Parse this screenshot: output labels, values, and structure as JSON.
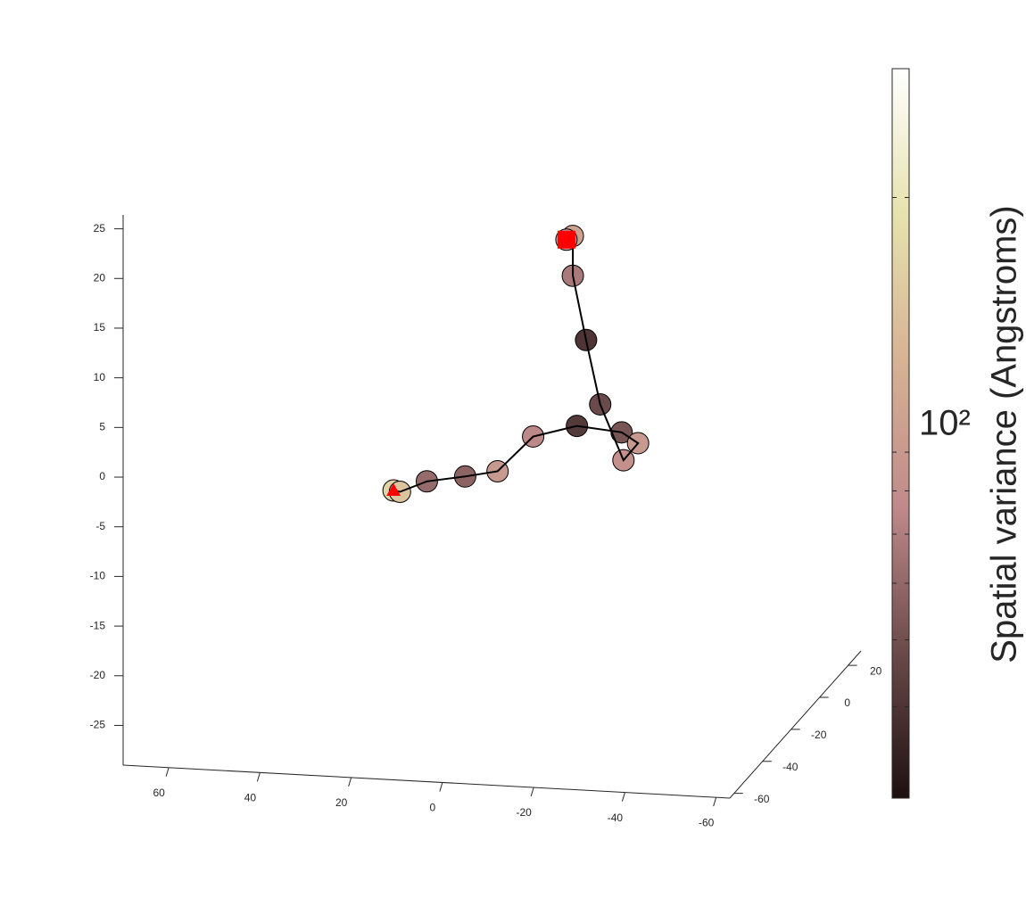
{
  "chart_data": {
    "type": "scatter3d",
    "x": [
      30.4,
      29.0,
      23.1,
      14.7,
      7.6,
      -0.2,
      -9.8,
      -19.6,
      -23.2,
      -20.0,
      -14.9,
      -11.8,
      -8.9,
      -8.9,
      -7.5
    ],
    "y": [
      0,
      0,
      0,
      0,
      0,
      0,
      0,
      0,
      0,
      0,
      0,
      0,
      0,
      0,
      0
    ],
    "z": [
      -10.5,
      -10.6,
      -9.4,
      -8.7,
      -8.0,
      -4.3,
      -3.0,
      -3.4,
      -4.4,
      -6.2,
      -0.7,
      5.7,
      12.1,
      16.1,
      15.7
    ],
    "values": [
      170,
      150,
      71,
      68,
      100,
      85,
      52,
      62,
      100,
      92,
      58,
      50,
      78,
      110,
      105
    ],
    "xlim": [
      -63,
      70
    ],
    "ylim": [
      -63,
      29
    ],
    "zlim": [
      -29,
      26.4
    ],
    "xticks": [
      -60,
      -40,
      -20,
      0,
      20,
      40,
      60
    ],
    "yticks": [
      -60,
      -40,
      -20,
      0,
      20
    ],
    "zticks": [
      -25,
      -20,
      -15,
      -10,
      -5,
      0,
      5,
      10,
      15,
      20,
      25
    ],
    "line_color": "#000000",
    "marker_edge_color": "#000000",
    "start_marker_color": "#ff0000",
    "end_marker_color": "#ff0000",
    "colorbar": {
      "label": "Spatial variance (Angstroms)",
      "scale": "log",
      "lim": [
        39,
        284
      ],
      "ticks": [
        50,
        60,
        70,
        80,
        90,
        {
          "value": 100,
          "label": "10²"
        },
        200
      ],
      "colormap": [
        "#1e1010",
        "#6a4a4a",
        "#c08a8a",
        "#d6b294",
        "#e6e2ae",
        "#ffffff"
      ]
    }
  }
}
